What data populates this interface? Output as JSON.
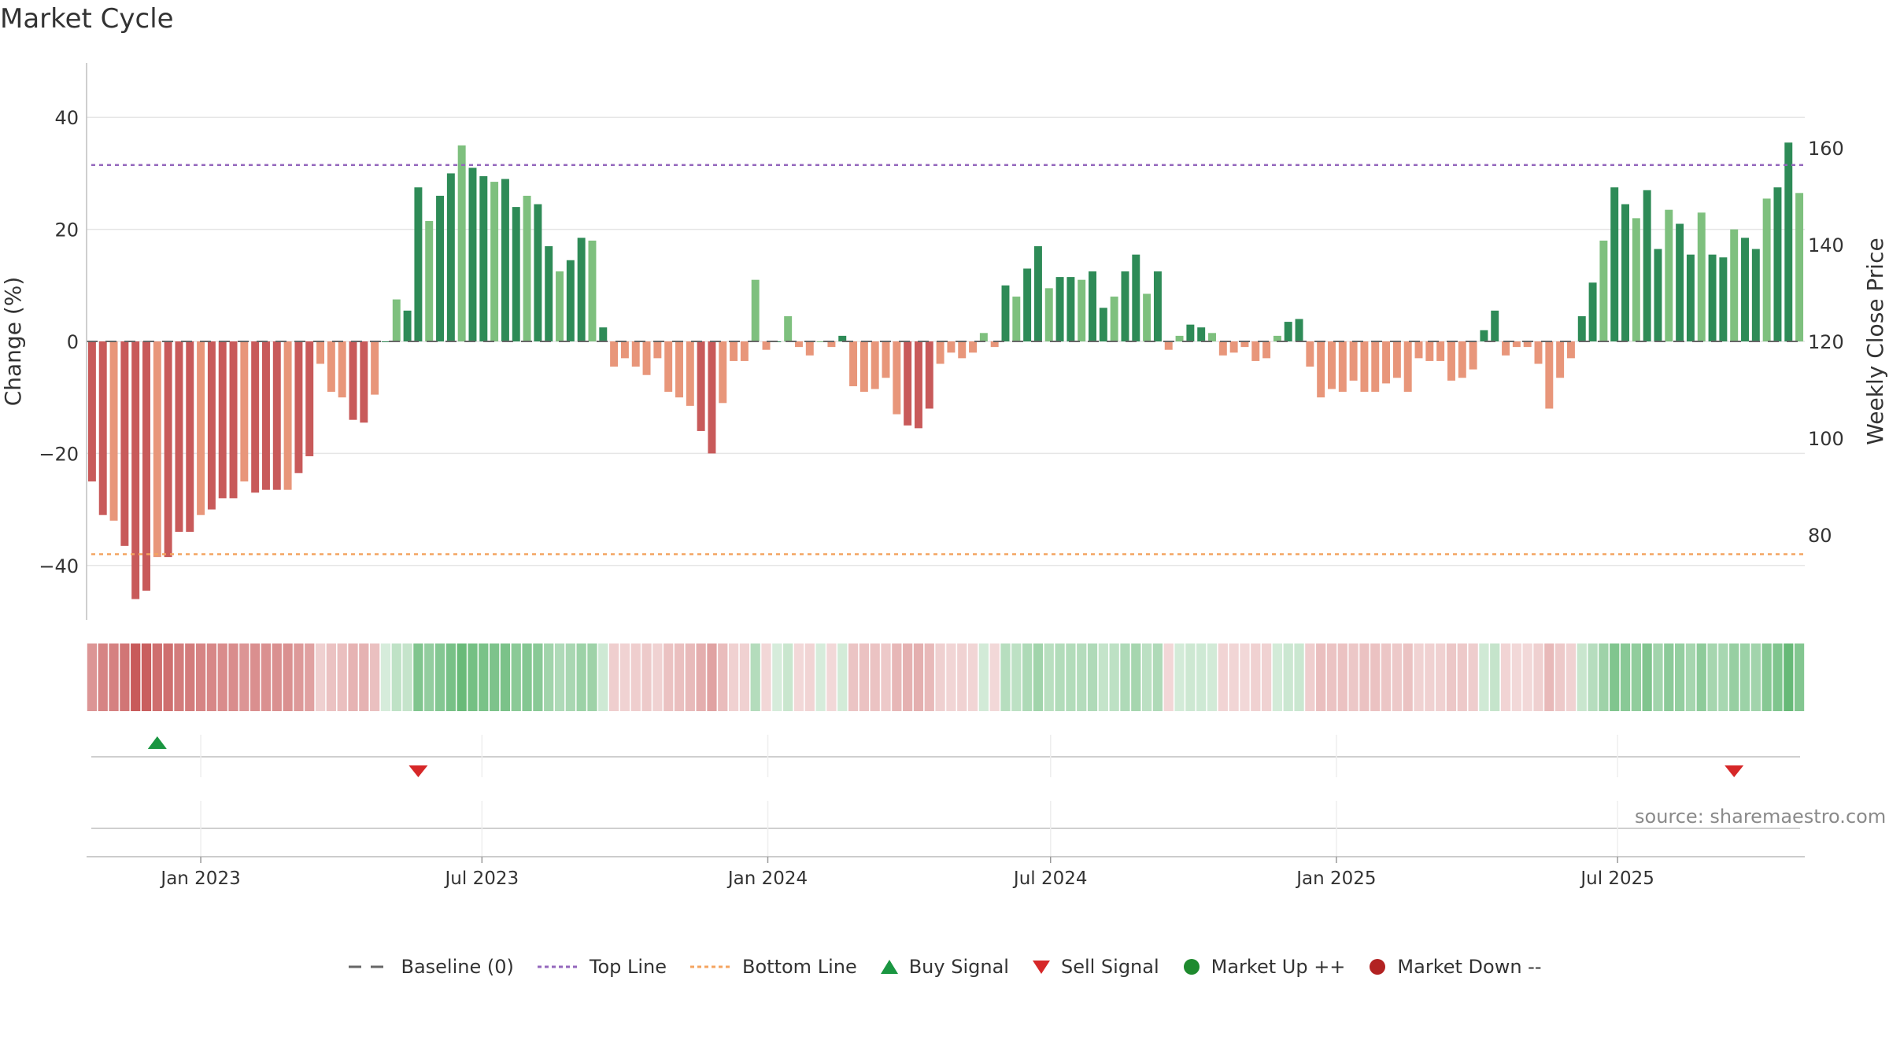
{
  "title": "Market Cycle",
  "source": "source: sharemaestro.com",
  "chart_data": {
    "type": "bar",
    "ylabel": "Change (%)",
    "y2label": "Weekly Close Price",
    "ylim": [
      -49.5,
      50
    ],
    "y2lim": [
      67.5,
      178.5
    ],
    "yticks": [
      {
        "v": 40,
        "label": "40"
      },
      {
        "v": 20,
        "label": "20"
      },
      {
        "v": 0,
        "label": "0"
      },
      {
        "v": -20,
        "label": "−20"
      },
      {
        "v": -40,
        "label": "−40"
      }
    ],
    "y2ticks": [
      {
        "v": 160,
        "label": "160"
      },
      {
        "v": 140,
        "label": "140"
      },
      {
        "v": 120,
        "label": "120"
      },
      {
        "v": 100,
        "label": "100"
      },
      {
        "v": 80,
        "label": "80"
      }
    ],
    "xticks": [
      {
        "date": "2023-01-01",
        "label": "Jan 2023"
      },
      {
        "date": "2023-07-01",
        "label": "Jul 2023"
      },
      {
        "date": "2024-01-01",
        "label": "Jan 2024"
      },
      {
        "date": "2024-07-01",
        "label": "Jul 2024"
      },
      {
        "date": "2025-01-01",
        "label": "Jan 2025"
      },
      {
        "date": "2025-07-01",
        "label": "Jul 2025"
      }
    ],
    "x_start": "2022-10-23",
    "week_days": 7,
    "baseline": 0,
    "top_line": 31.5,
    "bottom_line": -38,
    "values": [
      -25,
      -31,
      -32,
      -36.5,
      -46,
      -44.5,
      -38.5,
      -38.5,
      -34,
      -34,
      -31,
      -30,
      -28,
      -28,
      -25,
      -27,
      -26.5,
      -26.5,
      -26.5,
      -23.5,
      -20.5,
      -4,
      -9,
      -10,
      -14,
      -14.5,
      -9.5,
      0,
      7.5,
      5.5,
      27.5,
      21.5,
      26,
      30,
      35,
      31,
      29.5,
      28.5,
      29,
      24,
      26,
      24.5,
      17,
      12.5,
      14.5,
      18.5,
      18,
      2.5,
      -4.5,
      -3,
      -4.5,
      -6,
      -3,
      -9,
      -10,
      -11.5,
      -16,
      -20,
      -11,
      -3.5,
      -3.5,
      11,
      -1.5,
      0,
      4.5,
      -1,
      -2.5,
      0,
      -1,
      1,
      -8,
      -9,
      -8.5,
      -6.5,
      -13,
      -15,
      -15.5,
      -12,
      -4,
      -2,
      -3,
      -2,
      1.5,
      -1,
      10,
      8,
      13,
      17,
      9.5,
      11.5,
      11.5,
      11,
      12.5,
      6,
      8,
      12.5,
      15.5,
      8.5,
      12.5,
      -1.5,
      1,
      3,
      2.5,
      1.5,
      -2.5,
      -2,
      -1,
      -3.5,
      -3,
      1,
      3.5,
      4,
      -4.5,
      -10,
      -8.5,
      -9,
      -7,
      -9,
      -9,
      -7.5,
      -6.5,
      -9,
      -3,
      -3.5,
      -3.5,
      -7,
      -6.5,
      -5,
      2,
      5.5,
      -2.5,
      -1,
      -1,
      -4,
      -12,
      -6.5,
      -3,
      4.5,
      10.5,
      18,
      27.5,
      24.5,
      22,
      27,
      16.5,
      23.5,
      21,
      15.5,
      23,
      15.5,
      15,
      20,
      18.5,
      16.5,
      25.5,
      27.5,
      35.5,
      26.5
    ],
    "signals": [
      {
        "type": "buy",
        "date": "2022-12-04"
      },
      {
        "type": "sell",
        "date": "2023-05-21"
      },
      {
        "type": "sell",
        "date": "2025-09-14"
      }
    ],
    "legend": [
      {
        "key": "baseline",
        "label": "Baseline (0)",
        "color": "#666666"
      },
      {
        "key": "top",
        "label": "Top Line",
        "color": "#9467bd"
      },
      {
        "key": "bottom",
        "label": "Bottom Line",
        "color": "#f4a460"
      },
      {
        "key": "buy",
        "label": "Buy Signal",
        "color": "#1a9641"
      },
      {
        "key": "sell",
        "label": "Sell Signal",
        "color": "#d62728"
      },
      {
        "key": "up",
        "label": "Market Up ++",
        "color": "#1e8a2e"
      },
      {
        "key": "down",
        "label": "Market Down --",
        "color": "#b22222"
      }
    ],
    "colors": {
      "pos_dark": "#2e8b57",
      "pos_light": "#7ec07e",
      "neg_dark": "#c85a5a",
      "neg_light": "#e8967a"
    }
  }
}
